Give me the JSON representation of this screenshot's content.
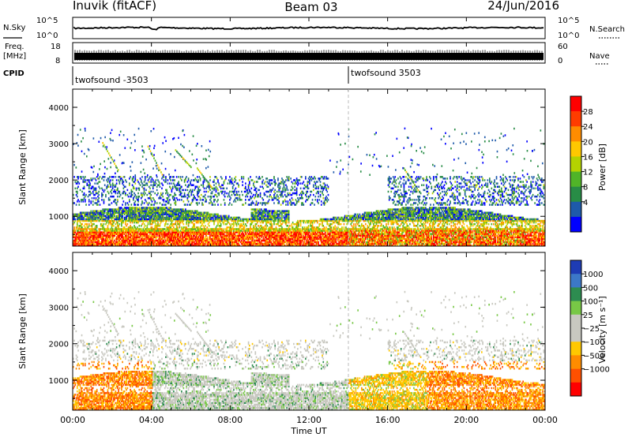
{
  "header": {
    "site": "Inuvik (fitACF)",
    "beam": "Beam 03",
    "date": "24/Jun/2016"
  },
  "top_panels": {
    "nsky_label": "N.Sky",
    "nsky_ticks": [
      "10^5",
      "10^0"
    ],
    "nsearch_label": "N.Search",
    "freq_label_1": "Freq.",
    "freq_label_2": "[MHz]",
    "freq_ticks": [
      "18",
      "8"
    ],
    "nave_ticks": [
      "60",
      "0"
    ],
    "nave_label": "Nave",
    "cpid_label": "CPID",
    "cpid_segments": [
      {
        "label": "twofsound -3503",
        "start_hour": 0
      },
      {
        "label": "twofsound 3503",
        "start_hour": 14
      }
    ]
  },
  "chart_data": [
    {
      "type": "heatmap",
      "name": "power",
      "ylabel": "Slant Range [km]",
      "ylim": [
        180,
        4500
      ],
      "yticks": [
        1000,
        2000,
        3000,
        4000
      ],
      "xlim": [
        0,
        24
      ],
      "colorbar": {
        "label": "Power [dB]",
        "ticks": [
          "28",
          "24",
          "20",
          "16",
          "12",
          "8",
          "4"
        ],
        "colors": [
          "#ff0000",
          "#ff3c00",
          "#ff8c00",
          "#ffc800",
          "#b4d200",
          "#50b428",
          "#288c46",
          "#1e5aaa",
          "#0000ff"
        ]
      }
    },
    {
      "type": "heatmap",
      "name": "velocity",
      "ylabel": "Slant Range [km]",
      "ylim": [
        180,
        4500
      ],
      "yticks": [
        1000,
        2000,
        3000,
        4000
      ],
      "xlim": [
        0,
        24
      ],
      "xlabel": "Time UT",
      "xticks": [
        "00:00",
        "04:00",
        "08:00",
        "12:00",
        "16:00",
        "20:00",
        "00:00"
      ],
      "colorbar": {
        "label": "Velocity [m s⁻¹]",
        "ticks": [
          "1000",
          "500",
          "100",
          "25",
          "−25",
          "−100",
          "−500",
          "−1000"
        ],
        "colors": [
          "#1e3cb4",
          "#3c78c8",
          "#2d8c50",
          "#78c846",
          "#c8c8c0",
          "#c8c8c0",
          "#ffc800",
          "#ff8c00",
          "#ff5000",
          "#ff0000"
        ]
      }
    }
  ]
}
